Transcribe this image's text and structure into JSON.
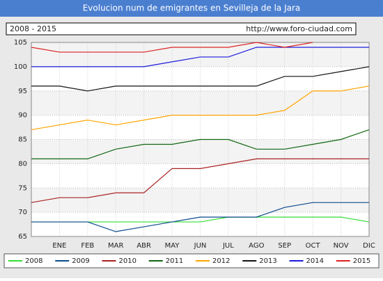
{
  "chart_data": {
    "type": "line",
    "title": "Evolucion num de emigrantes en Sevilleja de la Jara",
    "subtitle": "2008 - 2015",
    "source": "http://www.foro-ciudad.com",
    "categories": [
      null,
      "ENE",
      "FEB",
      "MAR",
      "ABR",
      "MAY",
      "JUN",
      "JUL",
      "AGO",
      "SEP",
      "OCT",
      "NOV",
      "DIC"
    ],
    "ylim": [
      65,
      105
    ],
    "yticks": [
      65,
      70,
      75,
      80,
      85,
      90,
      95,
      100,
      105
    ],
    "grid": true,
    "legend": "bottom",
    "series": [
      {
        "name": "2008",
        "color": "#33dd33",
        "values": [
          68,
          68,
          68,
          68,
          68,
          68,
          68,
          69,
          69,
          69,
          69,
          69,
          68
        ]
      },
      {
        "name": "2009",
        "color": "#0b4a8c",
        "values": [
          68,
          68,
          68,
          66,
          67,
          68,
          69,
          69,
          69,
          71,
          72,
          72,
          72
        ]
      },
      {
        "name": "2010",
        "color": "#aa2222",
        "values": [
          72,
          73,
          73,
          74,
          74,
          79,
          79,
          80,
          81,
          81,
          81,
          81,
          81
        ]
      },
      {
        "name": "2011",
        "color": "#116611",
        "values": [
          81,
          81,
          81,
          83,
          84,
          84,
          85,
          85,
          83,
          83,
          84,
          85,
          87
        ]
      },
      {
        "name": "2012",
        "color": "#ffa500",
        "values": [
          87,
          88,
          89,
          88,
          89,
          90,
          90,
          90,
          90,
          91,
          95,
          95,
          96
        ]
      },
      {
        "name": "2013",
        "color": "#111111",
        "values": [
          96,
          96,
          95,
          96,
          96,
          96,
          96,
          96,
          96,
          98,
          98,
          99,
          100
        ]
      },
      {
        "name": "2014",
        "color": "#1a1add",
        "values": [
          100,
          100,
          100,
          100,
          100,
          101,
          102,
          102,
          104,
          104,
          104,
          104,
          104
        ]
      },
      {
        "name": "2015",
        "color": "#dd2222",
        "values": [
          104,
          103,
          103,
          103,
          103,
          104,
          104,
          104,
          105,
          104,
          105,
          null,
          null
        ]
      }
    ]
  }
}
